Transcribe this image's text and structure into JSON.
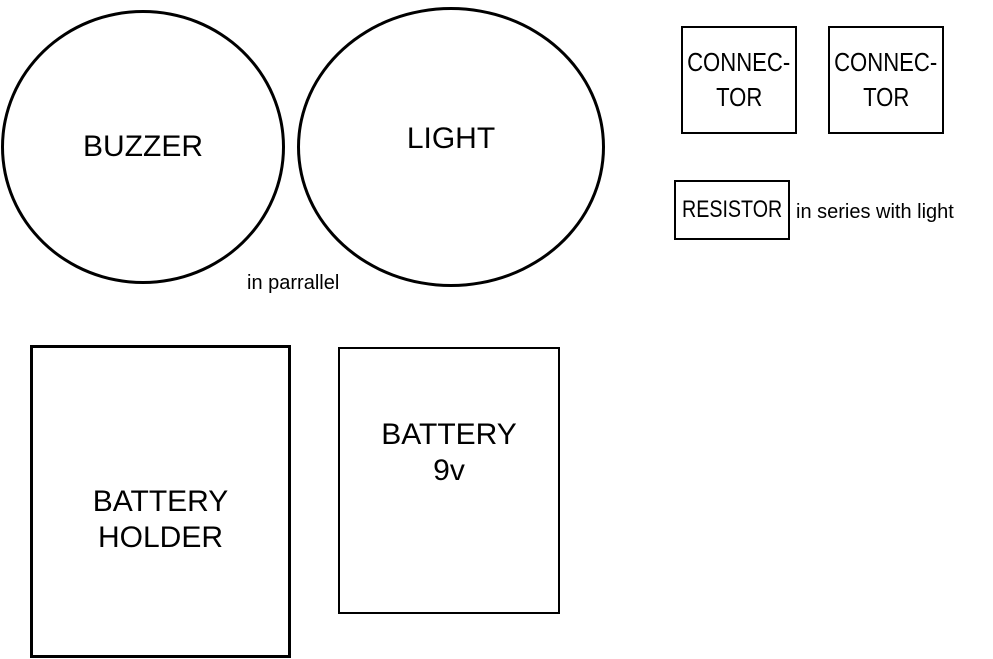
{
  "components": {
    "buzzer": {
      "label": "BUZZER"
    },
    "light": {
      "label": "LIGHT"
    },
    "connector_1": {
      "line1": "CONNEC-",
      "line2": "TOR"
    },
    "connector_2": {
      "line1": "CONNEC-",
      "line2": "TOR"
    },
    "resistor": {
      "label": "RESISTOR"
    },
    "battery_holder": {
      "line1": "BATTERY",
      "line2": "HOLDER"
    },
    "battery": {
      "line1": "BATTERY",
      "line2": "9v"
    }
  },
  "notes": {
    "parallel": "in parrallel",
    "series": "in series with light"
  }
}
